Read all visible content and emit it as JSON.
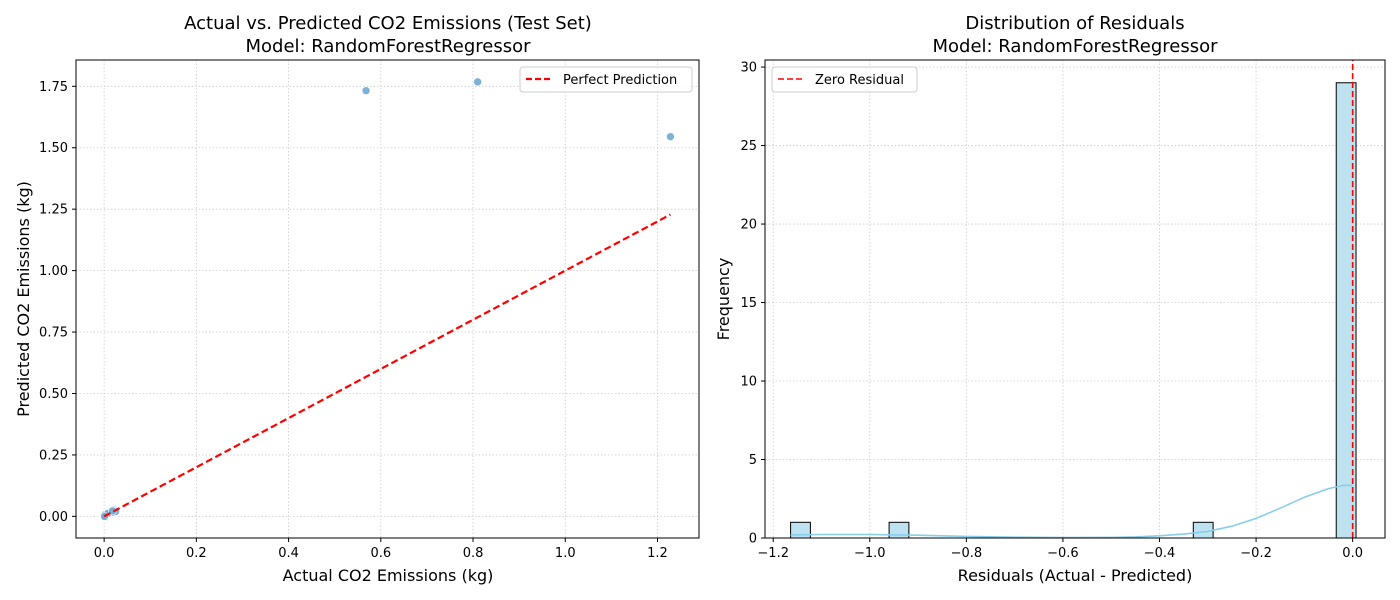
{
  "chart_data": [
    {
      "type": "scatter",
      "title": "Actual vs. Predicted CO2 Emissions (Test Set)",
      "subtitle": "Model: RandomForestRegressor",
      "xlabel": "Actual CO2 Emissions (kg)",
      "ylabel": "Predicted CO2 Emissions (kg)",
      "xlim": [
        -0.061,
        1.29
      ],
      "ylim": [
        -0.088,
        1.857
      ],
      "xticks": [
        0.0,
        0.2,
        0.4,
        0.6,
        0.8,
        1.0,
        1.2
      ],
      "xtick_labels": [
        "0.0",
        "0.2",
        "0.4",
        "0.6",
        "0.8",
        "1.0",
        "1.2"
      ],
      "yticks": [
        0.0,
        0.25,
        0.5,
        0.75,
        1.0,
        1.25,
        1.5,
        1.75
      ],
      "ytick_labels": [
        "0.00",
        "0.25",
        "0.50",
        "0.75",
        "1.00",
        "1.25",
        "1.50",
        "1.75"
      ],
      "grid": true,
      "legend_position": "top-right",
      "point_color": "#6fa8d2",
      "series": [
        {
          "x": [
            0.0,
            0.0,
            0.002,
            0.005,
            0.01,
            0.012,
            0.015,
            0.02,
            0.022,
            0.025,
            0.003,
            0.008,
            0.018,
            0.001,
            0.568,
            0.81,
            1.228
          ],
          "y": [
            0.0,
            0.003,
            -0.002,
            0.006,
            0.01,
            0.014,
            0.02,
            0.016,
            0.025,
            0.02,
            0.008,
            0.012,
            0.022,
            0.0,
            1.732,
            1.768,
            1.545
          ]
        }
      ],
      "reference_lines": [
        {
          "name": "Perfect Prediction",
          "x": [
            0.0,
            1.228
          ],
          "y": [
            0.0,
            1.228
          ],
          "color": "#ff0000",
          "style": "dashed"
        }
      ]
    },
    {
      "type": "bar",
      "title": "Distribution of Residuals",
      "subtitle": "Model: RandomForestRegressor",
      "xlabel": "Residuals (Actual - Predicted)",
      "ylabel": "Frequency",
      "xlim": [
        -1.217,
        0.067
      ],
      "ylim": [
        0,
        30.45
      ],
      "xticks": [
        -1.2,
        -1.0,
        -0.8,
        -0.6,
        -0.4,
        -0.2,
        0.0
      ],
      "xtick_labels": [
        "−1.2",
        "−1.0",
        "−0.8",
        "−0.6",
        "−0.4",
        "−0.2",
        "0.0"
      ],
      "yticks": [
        0,
        5,
        10,
        15,
        20,
        25,
        30
      ],
      "ytick_labels": [
        "0",
        "5",
        "10",
        "15",
        "20",
        "25",
        "30"
      ],
      "grid": true,
      "legend_position": "top-left",
      "bar_color": "#bfe2f0",
      "kde_color": "#87ceeb",
      "bins": [
        {
          "x0": -1.164,
          "x1": -1.123,
          "count": 1
        },
        {
          "x0": -0.96,
          "x1": -0.919,
          "count": 1
        },
        {
          "x0": -0.33,
          "x1": -0.289,
          "count": 1
        },
        {
          "x0": -0.034,
          "x1": 0.007,
          "count": 29
        }
      ],
      "kde": {
        "x": [
          -1.164,
          -1.1,
          -1.0,
          -0.9,
          -0.8,
          -0.7,
          -0.6,
          -0.5,
          -0.45,
          -0.4,
          -0.35,
          -0.3,
          -0.25,
          -0.2,
          -0.15,
          -0.1,
          -0.05,
          -0.02,
          0.0
        ],
        "y": [
          0.2,
          0.22,
          0.22,
          0.18,
          0.1,
          0.05,
          0.03,
          0.04,
          0.07,
          0.14,
          0.25,
          0.42,
          0.75,
          1.25,
          1.9,
          2.6,
          3.15,
          3.35,
          3.35
        ]
      },
      "reference_lines": [
        {
          "name": "Zero Residual",
          "x": [
            0.0,
            0.0
          ],
          "y": [
            0,
            30.45
          ],
          "color": "#ff0000",
          "style": "dashed"
        }
      ]
    }
  ]
}
